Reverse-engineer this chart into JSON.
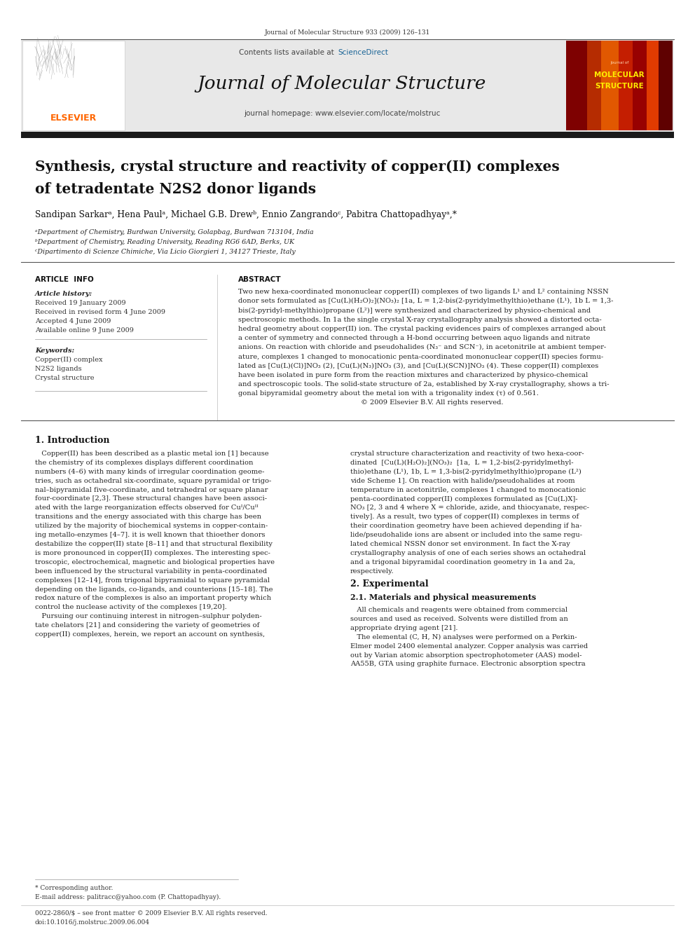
{
  "page_width": 9.92,
  "page_height": 13.23,
  "bg_color": "#ffffff",
  "journal_ref": "Journal of Molecular Structure 933 (2009) 126–131",
  "contents_text": "Contents lists available at",
  "sciencedirect_text": "ScienceDirect",
  "journal_title": "Journal of Molecular Structure",
  "journal_homepage": "journal homepage: www.elsevier.com/locate/molstruc",
  "paper_title_line1": "Synthesis, crystal structure and reactivity of copper(II) complexes",
  "paper_title_line2": "of tetradentate N2S2 donor ligands",
  "authors": "Sandipan Sarkarᵃ, Hena Paulᵃ, Michael G.B. Drewᵇ, Ennio Zangrandoᶜ, Pabitra Chattopadhyayᵃ,*",
  "affil_a": "ᵃDepartment of Chemistry, Burdwan University, Golapbag, Burdwan 713104, India",
  "affil_b": "ᵇDepartment of Chemistry, Reading University, Reading RG6 6AD, Berks, UK",
  "affil_c": "ᶜDipartimento di Scienze Chimiche, Via Licio Giorgieri 1, 34127 Trieste, Italy",
  "article_info_header": "ARTICLE  INFO",
  "abstract_header": "ABSTRACT",
  "article_history_label": "Article history:",
  "received1": "Received 19 January 2009",
  "received2": "Received in revised form 4 June 2009",
  "accepted": "Accepted 4 June 2009",
  "available": "Available online 9 June 2009",
  "keywords_label": "Keywords:",
  "kw1": "Copper(II) complex",
  "kw2": "N2S2 ligands",
  "kw3": "Crystal structure",
  "copyright": "© 2009 Elsevier B.V. All rights reserved.",
  "intro_header": "1. Introduction",
  "section2_header": "2. Experimental",
  "section21_header": "2.1. Materials and physical measurements",
  "footer_line1": "* Corresponding author.",
  "footer_line2": "E-mail address: palitracc@yahoo.com (P. Chattopadhyay).",
  "footer_line3": "0022-2860/$ – see front matter © 2009 Elsevier B.V. All rights reserved.",
  "footer_line4": "doi:10.1016/j.molstruc.2009.06.004",
  "elsevier_orange": "#FF6600",
  "sciencedirect_blue": "#1a6496",
  "header_bg": "#e8e8e8",
  "black_bar_color": "#1a1a1a",
  "abstract_lines": [
    "Two new hexa-coordinated mononuclear copper(II) complexes of two ligands L¹ and L² containing NSSN",
    "donor sets formulated as [Cu(L)(H₂O)₂](NO₃)₂ [1a, L = 1,2-bis(2-pyridylmethylthio)ethane (L¹), 1b L = 1,3-",
    "bis(2-pyridyl-methylthio)propane (L²)] were synthesized and characterized by physico-chemical and",
    "spectroscopic methods. In 1a the single crystal X-ray crystallography analysis showed a distorted octa-",
    "hedral geometry about copper(II) ion. The crystal packing evidences pairs of complexes arranged about",
    "a center of symmetry and connected through a H-bond occurring between aquo ligands and nitrate",
    "anions. On reaction with chloride and pseudohalides (N₃⁻ and SCN⁻), in acetonitrile at ambient temper-",
    "ature, complexes 1 changed to monocationic penta-coordinated mononuclear copper(II) species formu-",
    "lated as [Cu(L)(Cl)]NO₃ (2), [Cu(L)(N₃)]NO₃ (3), and [Cu(L)(SCN)]NO₃ (4). These copper(II) complexes",
    "have been isolated in pure form from the reaction mixtures and characterized by physico-chemical",
    "and spectroscopic tools. The solid-state structure of 2a, established by X-ray crystallography, shows a tri-",
    "gonal bipyramidal geometry about the metal ion with a trigonality index (τ) of 0.561.",
    "                                                        © 2009 Elsevier B.V. All rights reserved."
  ],
  "intro1_lines": [
    "   Copper(II) has been described as a plastic metal ion [1] because",
    "the chemistry of its complexes displays different coordination",
    "numbers (4–6) with many kinds of irregular coordination geome-",
    "tries, such as octahedral six-coordinate, square pyramidal or trigo-",
    "nal–bipyramidal five-coordinate, and tetrahedral or square planar",
    "four-coordinate [2,3]. These structural changes have been associ-",
    "ated with the large reorganization effects observed for Cuᴵ/Cuᴵᴵ",
    "transitions and the energy associated with this charge has been",
    "utilized by the majority of biochemical systems in copper-contain-",
    "ing metallo-enzymes [4–7]. it is well known that thioether donors",
    "destabilize the copper(II) state [8–11] and that structural flexibility",
    "is more pronounced in copper(II) complexes. The interesting spec-",
    "troscopic, electrochemical, magnetic and biological properties have",
    "been influenced by the structural variability in penta-coordinated",
    "complexes [12–14], from trigonal bipyramidal to square pyramidal",
    "depending on the ligands, co-ligands, and counterions [15–18]. The",
    "redox nature of the complexes is also an important property which",
    "control the nuclease activity of the complexes [19,20].",
    "   Pursuing our continuing interest in nitrogen–sulphur polyden-",
    "tate chelators [21] and considering the variety of geometries of",
    "copper(II) complexes, herein, we report an account on synthesis,"
  ],
  "intro2_lines": [
    "crystal structure characterization and reactivity of two hexa-coor-",
    "dinated  [Cu(L)(H₂O)₂](NO₃)₂  [1a,  L = 1,2-bis(2-pyridylmethyl-",
    "thio)ethane (L¹), 1b, L = 1,3-bis(2-pyridylmethylthio)propane (L²)",
    "vide Scheme 1]. On reaction with halide/pseudohalides at room",
    "temperature in acetonitrile, complexes 1 changed to monocationic",
    "penta-coordinated copper(II) complexes formulated as [Cu(L)X]-",
    "NO₃ [2, 3 and 4 where X = chloride, azide, and thiocyanate, respec-",
    "tively]. As a result, two types of copper(II) complexes in terms of",
    "their coordination geometry have been achieved depending if ha-",
    "lide/pseudohalide ions are absent or included into the same regu-",
    "lated chemical NSSN donor set environment. In fact the X-ray",
    "crystallography analysis of one of each series shows an octahedral",
    "and a trigonal bipyramidal coordination geometry in 1a and 2a,",
    "respectively."
  ],
  "section21_lines": [
    "   All chemicals and reagents were obtained from commercial",
    "sources and used as received. Solvents were distilled from an",
    "appropriate drying agent [21].",
    "   The elemental (C, H, N) analyses were performed on a Perkin-",
    "Elmer model 2400 elemental analyzer. Copper analysis was carried",
    "out by Varian atomic absorption spectrophotometer (AAS) model-",
    "AA55B, GTA using graphite furnace. Electronic absorption spectra"
  ]
}
